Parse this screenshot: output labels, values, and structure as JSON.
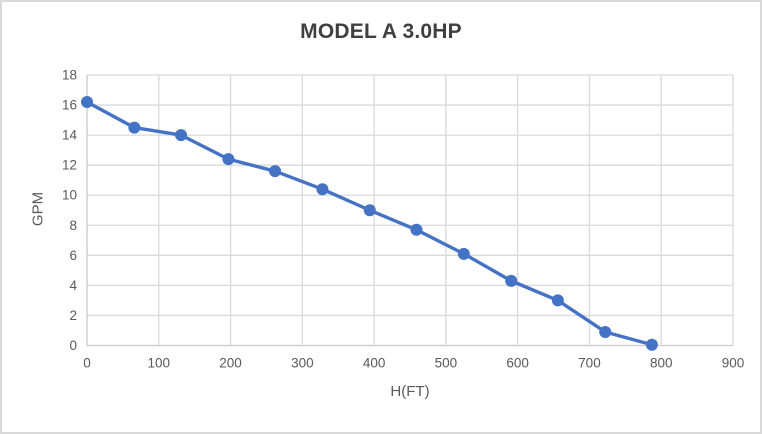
{
  "chart": {
    "title": "MODEL A 3.0HP",
    "x_axis_title": "H(FT)",
    "y_axis_title": "GPM"
  },
  "chart_data": {
    "type": "line",
    "title": "MODEL A 3.0HP",
    "xlabel": "H(FT)",
    "ylabel": "GPM",
    "x": [
      0,
      66,
      131,
      197,
      262,
      328,
      394,
      459,
      525,
      591,
      656,
      722,
      787
    ],
    "y": [
      16.2,
      14.5,
      14.0,
      12.4,
      11.6,
      10.4,
      9.0,
      7.7,
      6.1,
      4.3,
      3.0,
      0.9,
      0.05
    ],
    "xlim": [
      0,
      900
    ],
    "ylim": [
      0,
      18
    ],
    "x_ticks": [
      0,
      100,
      200,
      300,
      400,
      500,
      600,
      700,
      800,
      900
    ],
    "y_ticks": [
      0,
      2,
      4,
      6,
      8,
      10,
      12,
      14,
      16,
      18
    ],
    "grid": true,
    "legend": false,
    "colors": {
      "line": "#4472C4",
      "marker": "#4472C4",
      "grid": "#d9d9d9",
      "axis": "#c9c9c9",
      "tick_text": "#595959",
      "title_text": "#404040",
      "background": "#ffffff",
      "border": "#d9d9d9"
    }
  }
}
